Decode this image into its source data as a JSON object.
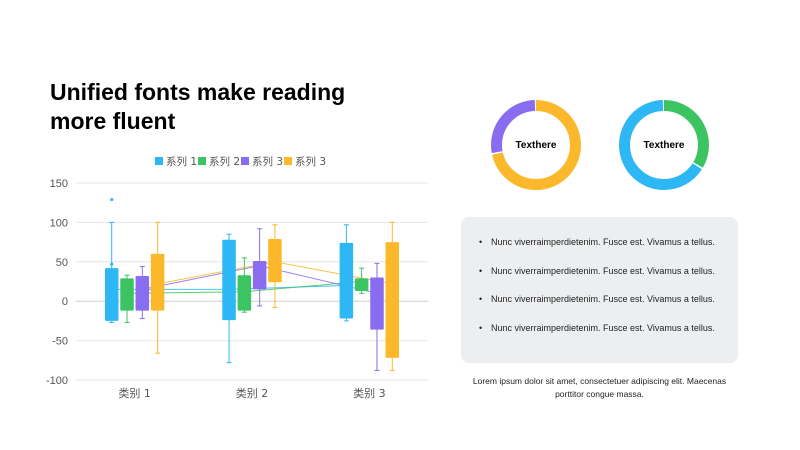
{
  "title": "Unified fonts make reading more fluent",
  "chart_data": {
    "type": "boxplot",
    "categories": [
      "类别 1",
      "类别 2",
      "类别 3"
    ],
    "ylim": [
      -100,
      150
    ],
    "yticks": [
      150,
      100,
      50,
      0,
      -50,
      -100
    ],
    "grid": true,
    "legend_position": "top-center",
    "series": [
      {
        "name": "系列 1",
        "color": "#2db7f5",
        "boxes": [
          {
            "min": -27,
            "q1": -25,
            "median": 15,
            "q3": 42,
            "max": 100,
            "outliers": [
              129,
              47
            ]
          },
          {
            "min": -78,
            "q1": -24,
            "median": 15,
            "q3": 78,
            "max": 85,
            "outliers": []
          },
          {
            "min": -25,
            "q1": -22,
            "median": 20,
            "q3": 74,
            "max": 97,
            "outliers": []
          }
        ]
      },
      {
        "name": "系列 2",
        "color": "#3cc463",
        "boxes": [
          {
            "min": -27,
            "q1": -12,
            "median": 10,
            "q3": 29,
            "max": 33,
            "outliers": []
          },
          {
            "min": -14,
            "q1": -12,
            "median": 12,
            "q3": 33,
            "max": 55,
            "outliers": []
          },
          {
            "min": 10,
            "q1": 13,
            "median": 25,
            "q3": 29,
            "max": 42,
            "outliers": []
          }
        ]
      },
      {
        "name": "系列 3",
        "color": "#8a6cf0",
        "boxes": [
          {
            "min": -22,
            "q1": -12,
            "median": 15,
            "q3": 32,
            "max": 44,
            "outliers": []
          },
          {
            "min": -6,
            "q1": 15,
            "median": 45,
            "q3": 51,
            "max": 92,
            "outliers": []
          },
          {
            "min": -88,
            "q1": -36,
            "median": 10,
            "q3": 30,
            "max": 48,
            "outliers": []
          }
        ]
      },
      {
        "name": "系列 3",
        "color": "#fbb82b",
        "boxes": [
          {
            "min": -66,
            "q1": -12,
            "median": 22,
            "q3": 60,
            "max": 100,
            "outliers": []
          },
          {
            "min": -8,
            "q1": 24,
            "median": 50,
            "q3": 79,
            "max": 97,
            "outliers": []
          },
          {
            "min": -88,
            "q1": -72,
            "median": 22,
            "q3": 75,
            "max": 100,
            "outliers": []
          }
        ]
      }
    ]
  },
  "donuts": [
    {
      "label": "Texthere",
      "segments": [
        {
          "value": 72,
          "color": "#fbb82b"
        },
        {
          "value": 28,
          "color": "#8a6cf0"
        }
      ]
    },
    {
      "label": "Texthere",
      "segments": [
        {
          "value": 34,
          "color": "#3cc463"
        },
        {
          "value": 66,
          "color": "#2db7f5"
        }
      ]
    }
  ],
  "bullets": [
    "Nunc  viverraimperdietenim.  Fusce  est.  Vivamus  a  tellus.",
    "Nunc  viverraimperdietenim.  Fusce  est.  Vivamus  a  tellus.",
    "Nunc  viverraimperdietenim.  Fusce  est.  Vivamus  a  tellus.",
    "Nunc  viverraimperdietenim.  Fusce  est.  Vivamus  a  tellus."
  ],
  "bullet_mark": "•",
  "caption": "Lorem ipsum dolor sit amet, consectetuer adipiscing elit. Maecenas porttitor congue massa."
}
